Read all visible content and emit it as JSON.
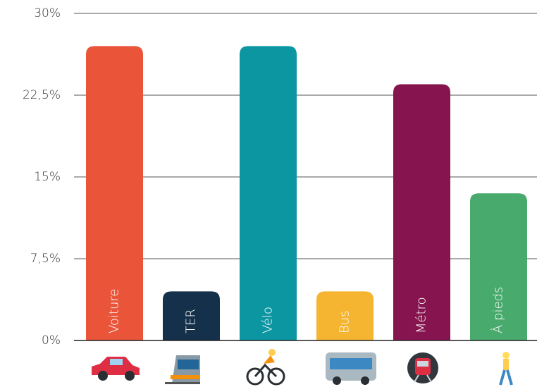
{
  "chart_data": {
    "type": "bar",
    "categories": [
      "Voiture",
      "TER",
      "Vélo",
      "Bus",
      "Métro",
      "À pieds"
    ],
    "values": [
      27,
      4.5,
      27,
      4.5,
      23.5,
      13.5
    ],
    "colors": [
      "#ea553a",
      "#15304a",
      "#0b96a2",
      "#f5b531",
      "#85144f",
      "#48aa6c"
    ],
    "ylim": [
      0,
      30
    ],
    "yticks": [
      {
        "value": 0,
        "label": "0%"
      },
      {
        "value": 7.5,
        "label": "7,5%"
      },
      {
        "value": 15,
        "label": "15%"
      },
      {
        "value": 22.5,
        "label": "22,5%"
      },
      {
        "value": 30,
        "label": "30%"
      }
    ],
    "grid": true
  }
}
